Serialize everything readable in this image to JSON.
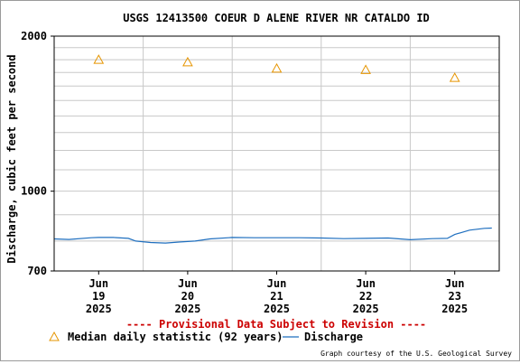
{
  "chart_data": {
    "type": "line",
    "title": "USGS 12413500 COEUR D ALENE RIVER NR CATALDO ID",
    "ylabel": "Discharge, cubic feet per second",
    "xlabel": "",
    "y_scale": "log",
    "ylim": [
      700,
      2000
    ],
    "y_tick_labels": [
      "2000",
      "1000",
      "700"
    ],
    "xlim": [
      "2025-06-18T12:00",
      "2025-06-23T12:00"
    ],
    "x_ticks": [
      {
        "x": "2025-06-19T00:00",
        "label": [
          "Jun",
          "19",
          "2025"
        ]
      },
      {
        "x": "2025-06-20T00:00",
        "label": [
          "Jun",
          "20",
          "2025"
        ]
      },
      {
        "x": "2025-06-21T00:00",
        "label": [
          "Jun",
          "21",
          "2025"
        ]
      },
      {
        "x": "2025-06-22T00:00",
        "label": [
          "Jun",
          "22",
          "2025"
        ]
      },
      {
        "x": "2025-06-23T00:00",
        "label": [
          "Jun",
          "23",
          "2025"
        ]
      }
    ],
    "grid": true,
    "series": [
      {
        "name": "Discharge",
        "color": "#1f6fbf",
        "points": [
          [
            "2025-06-18T12:00",
            808
          ],
          [
            "2025-06-18T16:00",
            806
          ],
          [
            "2025-06-18T22:00",
            812
          ],
          [
            "2025-06-19T00:00",
            813
          ],
          [
            "2025-06-19T04:00",
            813
          ],
          [
            "2025-06-19T08:00",
            810
          ],
          [
            "2025-06-19T10:00",
            800
          ],
          [
            "2025-06-19T14:00",
            795
          ],
          [
            "2025-06-19T18:00",
            793
          ],
          [
            "2025-06-19T22:00",
            797
          ],
          [
            "2025-06-20T02:00",
            800
          ],
          [
            "2025-06-20T06:00",
            808
          ],
          [
            "2025-06-20T12:00",
            813
          ],
          [
            "2025-06-20T18:00",
            812
          ],
          [
            "2025-06-21T00:00",
            812
          ],
          [
            "2025-06-21T06:00",
            812
          ],
          [
            "2025-06-21T12:00",
            811
          ],
          [
            "2025-06-21T18:00",
            809
          ],
          [
            "2025-06-22T00:00",
            810
          ],
          [
            "2025-06-22T06:00",
            811
          ],
          [
            "2025-06-22T12:00",
            805
          ],
          [
            "2025-06-22T18:00",
            809
          ],
          [
            "2025-06-22T22:00",
            810
          ],
          [
            "2025-06-23T00:00",
            824
          ],
          [
            "2025-06-23T04:00",
            840
          ],
          [
            "2025-06-23T08:00",
            847
          ],
          [
            "2025-06-23T10:00",
            848
          ]
        ]
      },
      {
        "name": "Median daily statistic (92 years)",
        "color": "#e69500",
        "marker": "triangle",
        "points": [
          [
            "2025-06-19T00:00",
            1800
          ],
          [
            "2025-06-20T00:00",
            1780
          ],
          [
            "2025-06-21T00:00",
            1730
          ],
          [
            "2025-06-22T00:00",
            1720
          ],
          [
            "2025-06-23T00:00",
            1660
          ]
        ]
      }
    ],
    "annotations": {
      "provisional": "---- Provisional Data Subject to Revision ----",
      "provisional_color": "#cc0000",
      "credit": "Graph courtesy of the U.S. Geological Survey"
    },
    "legend": {
      "placement": "bottom",
      "entries": [
        "Median daily statistic (92 years)",
        "Discharge"
      ]
    }
  }
}
